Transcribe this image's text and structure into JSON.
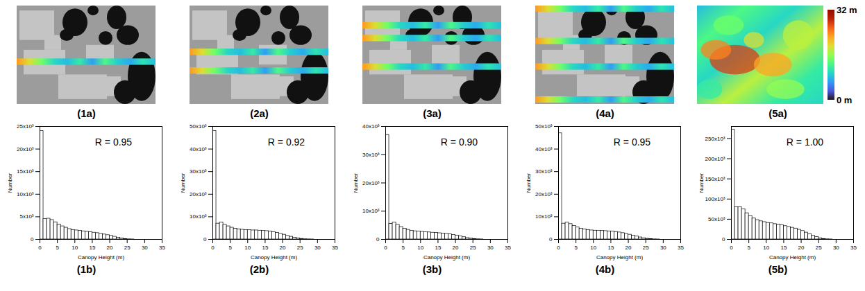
{
  "images": [
    {
      "caption": "(1a)"
    },
    {
      "caption": "(2a)"
    },
    {
      "caption": "(3a)"
    },
    {
      "caption": "(4a)"
    },
    {
      "caption": "(5a)",
      "colorbar": {
        "range": [
          0,
          32
        ],
        "ticks": [
          {
            "value": 0,
            "label": "0 m"
          },
          {
            "value": 32,
            "label": "32 m"
          }
        ]
      }
    }
  ],
  "chart_data": [
    {
      "type": "histogram",
      "title": "(1b)",
      "xlabel": "Canopy Height (m)",
      "ylabel": "Number",
      "annotations": [
        {
          "text": "R = 0.95"
        }
      ],
      "color": "#000000",
      "bins": [
        0,
        1,
        2,
        3,
        4,
        5,
        6,
        7,
        8,
        9,
        10,
        11,
        12,
        13,
        14,
        15,
        16,
        17,
        18,
        19,
        20,
        21,
        22,
        23,
        24,
        25,
        26,
        27,
        28,
        29,
        30,
        31,
        32,
        33,
        34,
        35
      ],
      "counts": [
        24000,
        4500,
        4600,
        4300,
        3800,
        3300,
        2900,
        2600,
        2300,
        2100,
        2000,
        1900,
        1800,
        1700,
        1600,
        1500,
        1400,
        1250,
        1100,
        950,
        800,
        600,
        400,
        200,
        80,
        30,
        10,
        0,
        0,
        0,
        0,
        0,
        0,
        0,
        0
      ],
      "xlim": [
        0,
        35
      ],
      "xticks": [
        0,
        5,
        10,
        15,
        20,
        25,
        30,
        35
      ],
      "ylim": [
        0,
        25000
      ],
      "yticks": [
        0,
        {
          "value": 5000,
          "label": "5x10³"
        },
        {
          "value": 10000,
          "label": "10x10³"
        },
        {
          "value": 15000,
          "label": "15x10³"
        },
        {
          "value": 20000,
          "label": "20x10³"
        },
        {
          "value": 25000,
          "label": "25x10³"
        }
      ]
    },
    {
      "type": "histogram",
      "title": "(2b)",
      "xlabel": "Canopy Height (m)",
      "ylabel": "Number",
      "annotations": [
        {
          "text": "R = 0.92"
        }
      ],
      "color": "#000000",
      "bins": [
        0,
        1,
        2,
        3,
        4,
        5,
        6,
        7,
        8,
        9,
        10,
        11,
        12,
        13,
        14,
        15,
        16,
        17,
        18,
        19,
        20,
        21,
        22,
        23,
        24,
        25,
        26,
        27,
        28,
        29,
        30,
        31,
        32,
        33,
        34,
        35
      ],
      "counts": [
        48000,
        7000,
        7500,
        6500,
        5800,
        5200,
        4800,
        4500,
        4300,
        4200,
        4100,
        4000,
        4000,
        3900,
        3800,
        3700,
        3500,
        3200,
        2900,
        2500,
        2100,
        1600,
        1200,
        800,
        500,
        250,
        100,
        40,
        10,
        0,
        0,
        0,
        0,
        0,
        0
      ],
      "xlim": [
        0,
        35
      ],
      "xticks": [
        0,
        5,
        10,
        15,
        20,
        25,
        30,
        35
      ],
      "ylim": [
        0,
        50000
      ],
      "yticks": [
        0,
        {
          "value": 10000,
          "label": "10x10³"
        },
        {
          "value": 20000,
          "label": "20x10³"
        },
        {
          "value": 30000,
          "label": "30x10³"
        },
        {
          "value": 40000,
          "label": "40x10³"
        },
        {
          "value": 50000,
          "label": "50x10³"
        }
      ]
    },
    {
      "type": "histogram",
      "title": "(3b)",
      "xlabel": "Canopy Height (m)",
      "ylabel": "Number",
      "annotations": [
        {
          "text": "R = 0.90"
        }
      ],
      "color": "#000000",
      "bins": [
        0,
        1,
        2,
        3,
        4,
        5,
        6,
        7,
        8,
        9,
        10,
        11,
        12,
        13,
        14,
        15,
        16,
        17,
        18,
        19,
        20,
        21,
        22,
        23,
        24,
        25,
        26,
        27,
        28,
        29,
        30,
        31,
        32,
        33,
        34,
        35
      ],
      "counts": [
        37000,
        5500,
        6000,
        5200,
        4400,
        3800,
        3400,
        3100,
        2900,
        2800,
        2700,
        2600,
        2500,
        2400,
        2300,
        2200,
        2100,
        2000,
        1800,
        1600,
        1400,
        1100,
        800,
        500,
        300,
        150,
        60,
        20,
        0,
        0,
        0,
        0,
        0,
        0,
        0
      ],
      "xlim": [
        0,
        35
      ],
      "xticks": [
        0,
        5,
        10,
        15,
        20,
        25,
        30,
        35
      ],
      "ylim": [
        0,
        40000
      ],
      "yticks": [
        0,
        {
          "value": 10000,
          "label": "10x10³"
        },
        {
          "value": 20000,
          "label": "20x10³"
        },
        {
          "value": 30000,
          "label": "30x10³"
        },
        {
          "value": 40000,
          "label": "40x10³"
        }
      ]
    },
    {
      "type": "histogram",
      "title": "(4b)",
      "xlabel": "Canopy Height (m)",
      "ylabel": "Number",
      "annotations": [
        {
          "text": "R = 0.95"
        }
      ],
      "color": "#000000",
      "bins": [
        0,
        1,
        2,
        3,
        4,
        5,
        6,
        7,
        8,
        9,
        10,
        11,
        12,
        13,
        14,
        15,
        16,
        17,
        18,
        19,
        20,
        21,
        22,
        23,
        24,
        25,
        26,
        27,
        28,
        29,
        30,
        31,
        32,
        33,
        34,
        35
      ],
      "counts": [
        47000,
        7000,
        7500,
        6800,
        6000,
        5300,
        4800,
        4500,
        4200,
        4000,
        3900,
        3800,
        3800,
        3700,
        3600,
        3500,
        3300,
        3100,
        2800,
        2500,
        2100,
        1700,
        1300,
        900,
        550,
        300,
        120,
        50,
        15,
        0,
        0,
        0,
        0,
        0,
        0
      ],
      "xlim": [
        0,
        35
      ],
      "xticks": [
        0,
        5,
        10,
        15,
        20,
        25,
        30,
        35
      ],
      "ylim": [
        0,
        50000
      ],
      "yticks": [
        0,
        {
          "value": 10000,
          "label": "10x10³"
        },
        {
          "value": 20000,
          "label": "20x10³"
        },
        {
          "value": 30000,
          "label": "30x10³"
        },
        {
          "value": 40000,
          "label": "40x10³"
        },
        {
          "value": 50000,
          "label": "50x10³"
        }
      ]
    },
    {
      "type": "histogram",
      "title": "(5b)",
      "xlabel": "Canopy Height (m)",
      "ylabel": "Number",
      "annotations": [
        {
          "text": "R = 1.00"
        }
      ],
      "color": "#000000",
      "bins": [
        0,
        1,
        2,
        3,
        4,
        5,
        6,
        7,
        8,
        9,
        10,
        11,
        12,
        13,
        14,
        15,
        16,
        17,
        18,
        19,
        20,
        21,
        22,
        23,
        24,
        25,
        26,
        27,
        28,
        29,
        30,
        31,
        32,
        33,
        34,
        35
      ],
      "counts": [
        272000,
        80000,
        80000,
        75000,
        65000,
        58000,
        52000,
        48000,
        45000,
        43000,
        41000,
        40000,
        38000,
        37000,
        35000,
        33000,
        31000,
        29000,
        27000,
        24000,
        21000,
        17000,
        13000,
        9000,
        6000,
        3000,
        1200,
        400,
        100,
        0,
        0,
        0,
        0,
        0,
        0
      ],
      "xlim": [
        0,
        35
      ],
      "xticks": [
        0,
        5,
        10,
        15,
        20,
        25,
        30,
        35
      ],
      "ylim": [
        0,
        280000
      ],
      "yticks": [
        0,
        {
          "value": 50000,
          "label": "50x10³"
        },
        {
          "value": 100000,
          "label": "100x10³"
        },
        {
          "value": 150000,
          "label": "150x10³"
        },
        {
          "value": 200000,
          "label": "200x10³"
        },
        {
          "value": 250000,
          "label": "250x10³"
        }
      ]
    }
  ]
}
